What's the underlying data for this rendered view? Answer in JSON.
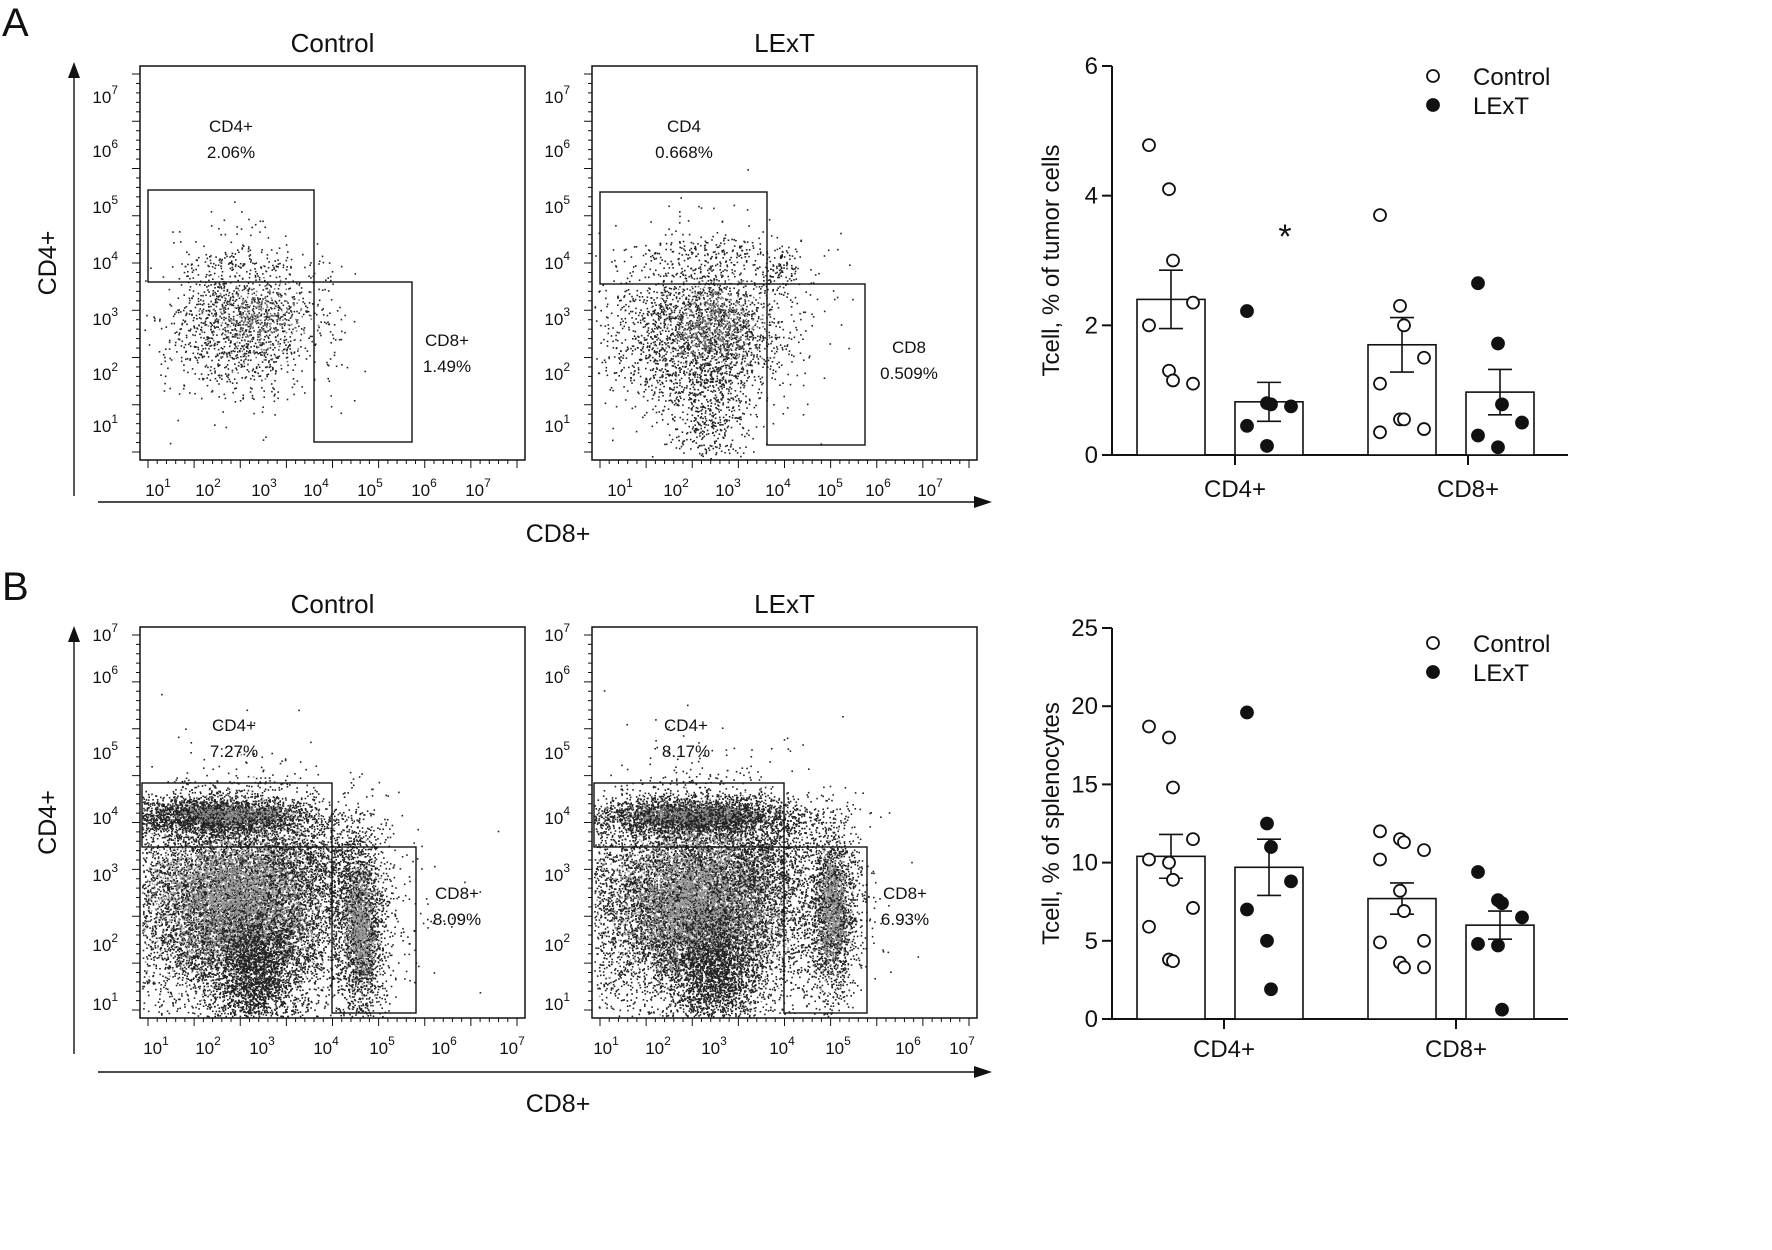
{
  "figure": {
    "panels": [
      "A",
      "B"
    ],
    "axis_names": {
      "x": "CD8+",
      "y": "CD4+"
    },
    "decades": [
      1,
      2,
      3,
      4,
      5,
      6,
      7
    ]
  },
  "chart_data": [
    {
      "type": "scatter",
      "panel": "A",
      "title": "Control",
      "xlabel": "CD8+",
      "ylabel": "CD4+",
      "scale": "log",
      "gates": [
        {
          "name": "CD4+",
          "percent": "2.06%"
        },
        {
          "name": "CD8+",
          "percent": "1.49%"
        }
      ]
    },
    {
      "type": "scatter",
      "panel": "A",
      "title": "LExT",
      "xlabel": "CD8+",
      "ylabel": "CD4+",
      "scale": "log",
      "gates": [
        {
          "name": "CD4",
          "percent": "0.668%"
        },
        {
          "name": "CD8",
          "percent": "0.509%"
        }
      ]
    },
    {
      "type": "bar",
      "panel": "A",
      "ylabel": "Tcell, % of tumor cells",
      "ylim": [
        0,
        6
      ],
      "yticks": [
        0,
        2,
        4,
        6
      ],
      "categories": [
        "CD4+",
        "CD8+"
      ],
      "legend": {
        "position": "top-right",
        "entries": [
          "Control",
          "LExT"
        ]
      },
      "annotations": [
        "*"
      ],
      "series": [
        {
          "name": "Control",
          "marker": "open-circle",
          "means": [
            2.4,
            1.7
          ],
          "sem": [
            0.45,
            0.42
          ],
          "points": [
            [
              4.78,
              4.1,
              3.0,
              2.35,
              2.0,
              1.3,
              1.15,
              1.1
            ],
            [
              3.7,
              2.3,
              2.0,
              1.5,
              1.1,
              0.55,
              0.55,
              0.4,
              0.35
            ]
          ]
        },
        {
          "name": "LExT",
          "marker": "filled-circle",
          "means": [
            0.82,
            0.97
          ],
          "sem": [
            0.3,
            0.35
          ],
          "points": [
            [
              2.22,
              0.8,
              0.78,
              0.75,
              0.45,
              0.14
            ],
            [
              2.65,
              1.72,
              0.78,
              0.5,
              0.3,
              0.12
            ]
          ]
        }
      ]
    },
    {
      "type": "scatter",
      "panel": "B",
      "title": "Control",
      "xlabel": "CD8+",
      "ylabel": "CD4+",
      "scale": "log",
      "gates": [
        {
          "name": "CD4+",
          "percent": "7.27%"
        },
        {
          "name": "CD8+",
          "percent": "8.09%"
        }
      ]
    },
    {
      "type": "scatter",
      "panel": "B",
      "title": "LExT",
      "xlabel": "CD8+",
      "ylabel": "CD4+",
      "scale": "log",
      "gates": [
        {
          "name": "CD4+",
          "percent": "8.17%"
        },
        {
          "name": "CD8+",
          "percent": "6.93%"
        }
      ]
    },
    {
      "type": "bar",
      "panel": "B",
      "ylabel": "Tcell, % of splenocytes",
      "ylim": [
        0,
        25
      ],
      "yticks": [
        0,
        5,
        10,
        15,
        20,
        25
      ],
      "categories": [
        "CD4+",
        "CD8+"
      ],
      "legend": {
        "position": "top-right",
        "entries": [
          "Control",
          "LExT"
        ]
      },
      "annotations": [],
      "series": [
        {
          "name": "Control",
          "marker": "open-circle",
          "means": [
            10.4,
            7.7
          ],
          "sem": [
            1.4,
            1.0
          ],
          "points": [
            [
              18.7,
              18.0,
              14.8,
              11.5,
              10.2,
              10.0,
              8.9,
              7.1,
              5.9,
              3.8,
              3.7
            ],
            [
              12.0,
              11.5,
              11.3,
              10.8,
              10.2,
              8.2,
              6.9,
              5.0,
              4.9,
              3.6,
              3.3,
              3.3
            ]
          ]
        },
        {
          "name": "LExT",
          "marker": "filled-circle",
          "means": [
            9.7,
            6.0
          ],
          "sem": [
            1.8,
            0.9
          ],
          "points": [
            [
              19.6,
              12.5,
              11.0,
              8.8,
              7.0,
              5.0,
              1.9
            ],
            [
              9.4,
              7.6,
              7.4,
              6.5,
              4.8,
              4.7,
              0.6
            ]
          ]
        }
      ]
    }
  ]
}
